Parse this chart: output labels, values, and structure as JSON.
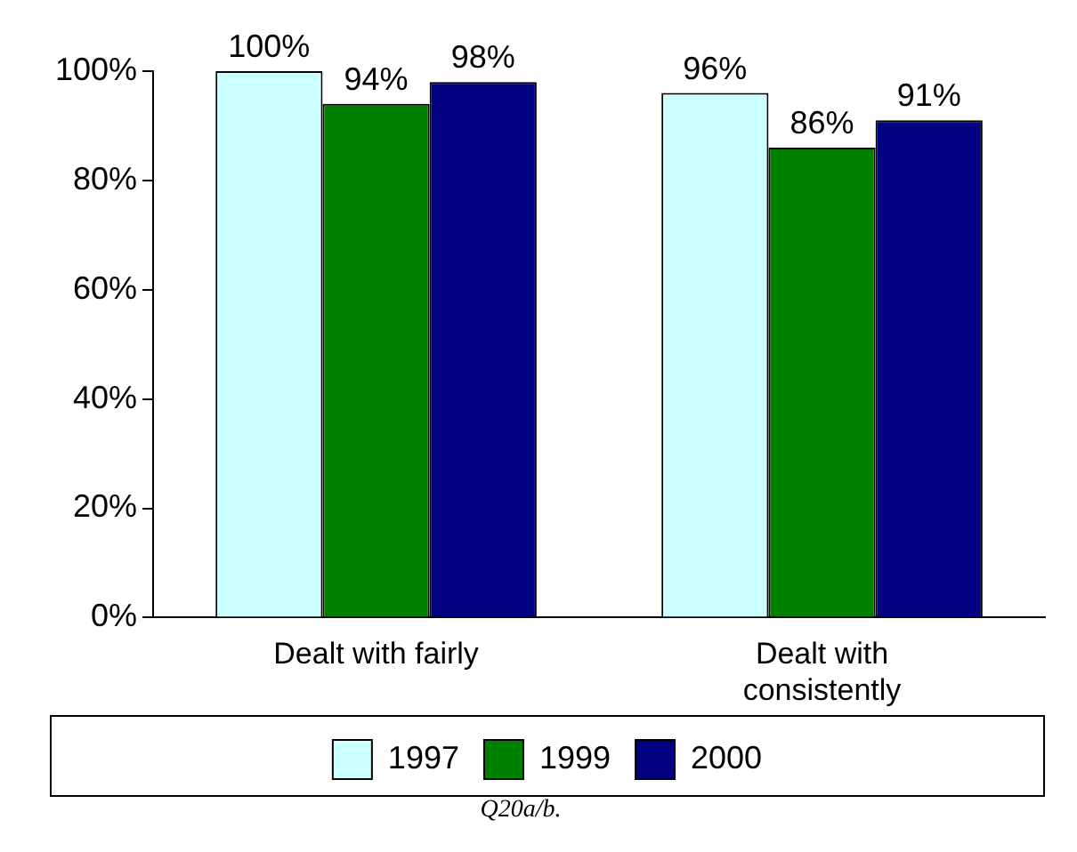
{
  "chart_data": {
    "type": "bar",
    "categories": [
      "Dealt with fairly",
      "Dealt with consistently"
    ],
    "series": [
      {
        "name": "1997",
        "color": "#ccffff",
        "values": [
          100,
          96
        ],
        "value_labels": [
          "100%",
          "96%"
        ]
      },
      {
        "name": "1999",
        "color": "#008000",
        "values": [
          94,
          86
        ],
        "value_labels": [
          "94%",
          "86%"
        ]
      },
      {
        "name": "2000",
        "color": "#000080",
        "values": [
          98,
          91
        ],
        "value_labels": [
          "98%",
          "91%"
        ]
      }
    ],
    "ylim": [
      0,
      100
    ],
    "yticks": [
      {
        "value": 0,
        "label": "0%"
      },
      {
        "value": 20,
        "label": "20%"
      },
      {
        "value": 40,
        "label": "40%"
      },
      {
        "value": 60,
        "label": "60%"
      },
      {
        "value": 80,
        "label": "80%"
      },
      {
        "value": 100,
        "label": "100%"
      }
    ],
    "grid": false,
    "legend": "bottom",
    "annotations": [
      "Q20a/b."
    ]
  }
}
